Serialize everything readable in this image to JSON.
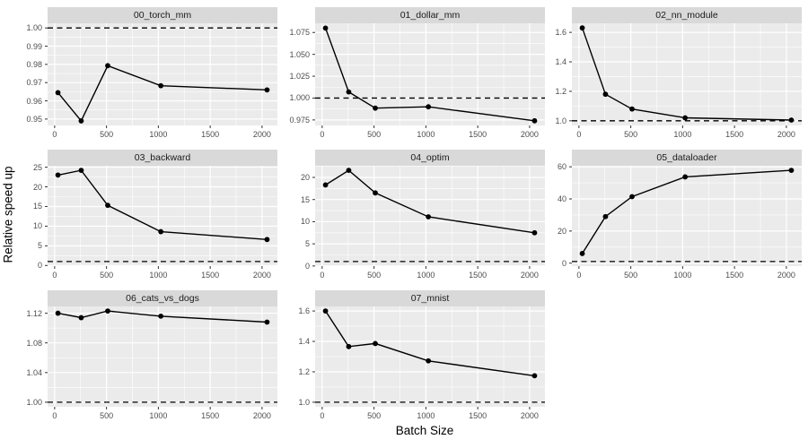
{
  "colors": {
    "background": "#FFFFFF",
    "panel_bg": "#EBEBEB",
    "strip_bg": "#D9D9D9",
    "grid": "#FFFFFF",
    "line": "#000000",
    "point": "#000000",
    "hline": "#000000",
    "tick_mark": "#333333",
    "axis_text": "#4D4D4D",
    "strip_text": "#1A1A1A",
    "axis_title": "#000000"
  },
  "chart_data": {
    "type": "line",
    "title": "",
    "xlabel": "Batch Size",
    "ylabel": "Relative speed up",
    "legend": "none",
    "grid": true,
    "x_values": [
      32,
      256,
      512,
      1024,
      2048
    ],
    "xticks": [
      0,
      500,
      1000,
      1500,
      2000
    ],
    "xtick_labels": [
      "0",
      "500",
      "1000",
      "1500",
      "2000"
    ],
    "xlim": [
      -68,
      2148
    ],
    "hline": 1,
    "facets": [
      {
        "title": "00_torch_mm",
        "x": [
          32,
          256,
          512,
          1024,
          2048
        ],
        "y": [
          0.9645,
          0.949,
          0.9793,
          0.9683,
          0.966
        ],
        "yticks": [
          0.95,
          0.96,
          0.97,
          0.98,
          0.99,
          1.0
        ],
        "ytick_labels": [
          "0.95",
          "0.96",
          "0.97",
          "0.98",
          "0.99",
          "1.00"
        ],
        "ylim": [
          0.9465,
          1.00255
        ]
      },
      {
        "title": "01_dollar_mm",
        "x": [
          32,
          256,
          512,
          1024,
          2048
        ],
        "y": [
          1.08,
          1.007,
          0.9885,
          0.99,
          0.974
        ],
        "yticks": [
          0.975,
          1.0,
          1.025,
          1.05,
          1.075
        ],
        "ytick_labels": [
          "0.975",
          "1.000",
          "1.025",
          "1.050",
          "1.075"
        ],
        "ylim": [
          0.9687,
          1.0855
        ]
      },
      {
        "title": "02_nn_module",
        "x": [
          32,
          256,
          512,
          1024,
          2048
        ],
        "y": [
          1.63,
          1.18,
          1.08,
          1.02,
          1.005
        ],
        "yticks": [
          1.0,
          1.2,
          1.4,
          1.6
        ],
        "ytick_labels": [
          "1.0",
          "1.2",
          "1.4",
          "1.6"
        ],
        "ylim": [
          0.9685,
          1.6615
        ]
      },
      {
        "title": "03_backward",
        "x": [
          32,
          256,
          512,
          1024,
          2048
        ],
        "y": [
          23.0,
          24.2,
          15.3,
          8.6,
          6.6
        ],
        "yticks": [
          0,
          5,
          10,
          15,
          20,
          25
        ],
        "ytick_labels": [
          "0",
          "5",
          "10",
          "15",
          "20",
          "25"
        ],
        "ylim": [
          -0.16,
          25.36
        ]
      },
      {
        "title": "04_optim",
        "x": [
          32,
          256,
          512,
          1024,
          2048
        ],
        "y": [
          18.3,
          21.6,
          16.5,
          11.1,
          7.5
        ],
        "yticks": [
          0,
          5,
          10,
          15,
          20
        ],
        "ytick_labels": [
          "0",
          "5",
          "10",
          "15",
          "20"
        ],
        "ylim": [
          -0.03,
          22.63
        ]
      },
      {
        "title": "05_dataloader",
        "x": [
          32,
          256,
          512,
          1024,
          2048
        ],
        "y": [
          6,
          29,
          41.4,
          53.7,
          57.8
        ],
        "yticks": [
          0,
          20,
          40,
          60
        ],
        "ytick_labels": [
          "0",
          "20",
          "40",
          "60"
        ],
        "ylim": [
          -1.84,
          60.64
        ]
      },
      {
        "title": "06_cats_vs_dogs",
        "x": [
          32,
          256,
          512,
          1024,
          2048
        ],
        "y": [
          1.12,
          1.114,
          1.123,
          1.116,
          1.108
        ],
        "yticks": [
          1.0,
          1.04,
          1.08,
          1.12
        ],
        "ytick_labels": [
          "1.00",
          "1.04",
          "1.08",
          "1.12"
        ],
        "ylim": [
          0.99385,
          1.12915
        ]
      },
      {
        "title": "07_mnist",
        "x": [
          32,
          256,
          512,
          1024,
          2048
        ],
        "y": [
          1.6,
          1.366,
          1.386,
          1.272,
          1.174
        ],
        "yticks": [
          1.0,
          1.2,
          1.4,
          1.6
        ],
        "ytick_labels": [
          "1.0",
          "1.2",
          "1.4",
          "1.6"
        ],
        "ylim": [
          0.97,
          1.63
        ]
      }
    ]
  }
}
